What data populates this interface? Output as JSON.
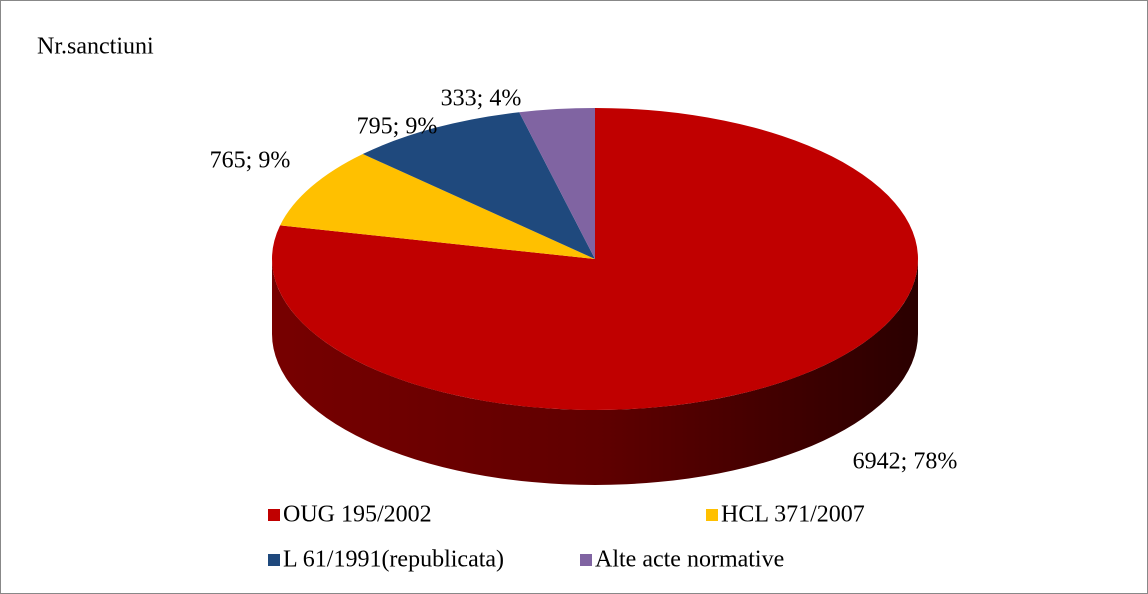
{
  "chart_data": {
    "type": "pie",
    "title": "Nr.sanctiuni",
    "categories": [
      "OUG 195/2002",
      "HCL 371/2007",
      "L 61/1991(republicata)",
      "Alte acte normative"
    ],
    "values": [
      6942,
      765,
      795,
      333
    ],
    "value_labels": [
      "6942; 78%",
      "765; 9%",
      "795; 9%",
      "333; 4%"
    ],
    "colors": [
      "#c00000",
      "#ffc000",
      "#1f497d",
      "#8064a2"
    ],
    "legend": "bottom"
  }
}
